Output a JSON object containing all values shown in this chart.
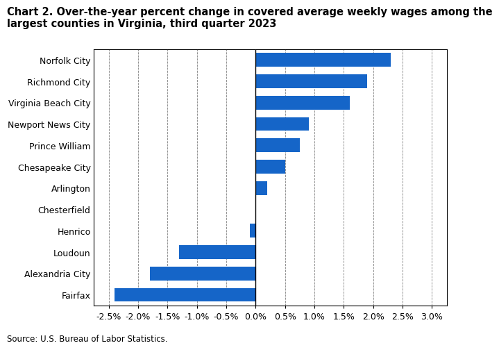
{
  "title_line1": "Chart 2. Over-the-year percent change in covered average weekly wages among the",
  "title_line2": "largest counties in Virginia, third quarter 2023",
  "categories": [
    "Norfolk City",
    "Richmond City",
    "Virginia Beach City",
    "Newport News City",
    "Prince William",
    "Chesapeake City",
    "Arlington",
    "Chesterfield",
    "Henrico",
    "Loudoun",
    "Alexandria City",
    "Fairfax"
  ],
  "values": [
    2.3,
    1.9,
    1.6,
    0.9,
    0.75,
    0.5,
    0.2,
    0.0,
    -0.1,
    -1.3,
    -1.8,
    -2.4
  ],
  "bar_color": "#1565C8",
  "xlim": [
    -2.75,
    3.25
  ],
  "xticks": [
    -2.5,
    -2.0,
    -1.5,
    -1.0,
    -0.5,
    0.0,
    0.5,
    1.0,
    1.5,
    2.0,
    2.5,
    3.0
  ],
  "source": "Source: U.S. Bureau of Labor Statistics.",
  "title_fontsize": 10.5,
  "tick_fontsize": 9,
  "source_fontsize": 8.5
}
